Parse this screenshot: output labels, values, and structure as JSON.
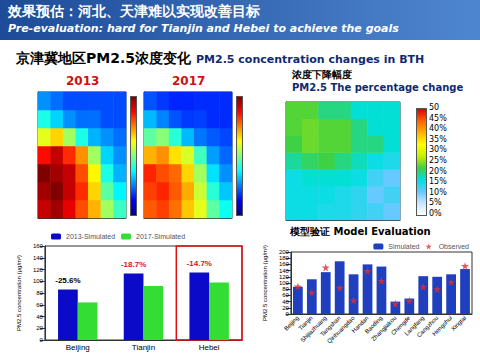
{
  "header": {
    "title": "效果预估：河北、天津难以实现改善目标",
    "subtitle": "Pre-evaluation: hard for Tianjin and Hebei to achieve the goals"
  },
  "section": {
    "title": "京津冀地区PM2.5浓度变化",
    "subtitle": "PM2.5 concentration changes in BTH"
  },
  "chart_data": [
    {
      "type": "heatmap",
      "title": "2013",
      "x": [
        113.5,
        114.5,
        115.5,
        116.5,
        117.5,
        118.5,
        119.5
      ],
      "y": [
        36.5,
        37.5,
        38.5,
        39.5,
        40.5,
        41.5,
        42.5
      ],
      "cells": [
        [
          140,
          145,
          135,
          120,
          105,
          80,
          65
        ],
        [
          145,
          150,
          140,
          125,
          100,
          70,
          55
        ],
        [
          150,
          145,
          140,
          120,
          95,
          60,
          45
        ],
        [
          130,
          140,
          125,
          110,
          80,
          50,
          40
        ],
        [
          90,
          100,
          80,
          60,
          45,
          40,
          35
        ],
        [
          60,
          50,
          40,
          35,
          35,
          30,
          30
        ],
        [
          40,
          35,
          30,
          30,
          30,
          30,
          30
        ]
      ],
      "color_range": [
        0,
        150
      ],
      "tick_labels": false
    },
    {
      "type": "heatmap",
      "title": "2017",
      "x": [
        113.5,
        114.5,
        115.5,
        116.5,
        117.5,
        118.5,
        119.5
      ],
      "y": [
        36.5,
        37.5,
        38.5,
        39.5,
        40.5,
        41.5,
        42.5
      ],
      "cells": [
        [
          118,
          122,
          115,
          102,
          90,
          70,
          58
        ],
        [
          122,
          126,
          118,
          106,
          86,
          62,
          48
        ],
        [
          126,
          120,
          116,
          100,
          80,
          52,
          40
        ],
        [
          105,
          110,
          98,
          88,
          66,
          42,
          34
        ],
        [
          70,
          76,
          62,
          46,
          36,
          32,
          29
        ],
        [
          46,
          38,
          31,
          27,
          28,
          25,
          25
        ],
        [
          31,
          27,
          24,
          24,
          25,
          25,
          25
        ]
      ],
      "color_range": [
        0,
        150
      ],
      "tick_labels": false
    },
    {
      "type": "heatmap",
      "title": "浓度下降幅度",
      "subtitle": "PM2.5 The percentage change",
      "x": [
        113.5,
        114.5,
        115.5,
        116.5,
        117.5,
        118.5,
        119.5
      ],
      "y": [
        36.5,
        37.5,
        38.5,
        39.5,
        40.5,
        41.5,
        42.5
      ],
      "cells": [
        [
          16,
          16,
          15,
          15,
          14,
          13,
          11
        ],
        [
          16,
          16,
          16,
          15,
          14,
          11,
          13
        ],
        [
          16,
          17,
          17,
          17,
          16,
          13,
          11
        ],
        [
          19,
          21,
          22,
          20,
          18,
          16,
          15
        ],
        [
          22,
          24,
          23,
          23,
          20,
          20,
          17
        ],
        [
          23,
          24,
          23,
          23,
          20,
          17,
          17
        ],
        [
          23,
          23,
          20,
          20,
          17,
          17,
          17
        ]
      ],
      "color_range": [
        0,
        50
      ],
      "color_ticks": [
        {
          "value": 0,
          "label": "0%"
        },
        {
          "value": 5,
          "label": "5%"
        },
        {
          "value": 10,
          "label": "10%"
        },
        {
          "value": 15,
          "label": "15%"
        },
        {
          "value": 20,
          "label": "20%"
        },
        {
          "value": 25,
          "label": "25%"
        },
        {
          "value": 30,
          "label": "30%"
        },
        {
          "value": 35,
          "label": "35%"
        },
        {
          "value": 40,
          "label": "40%"
        },
        {
          "value": 45,
          "label": "45%"
        },
        50
      ],
      "tick_labels": false
    },
    {
      "type": "bar",
      "categories": [
        "Beijing",
        "Tianjin",
        "Hebei"
      ],
      "series": [
        {
          "name": "2013-Simulated",
          "color": "#0a0ac8",
          "values": [
            86,
            113,
            115
          ]
        },
        {
          "name": "2017-Simulated",
          "color": "#33dd33",
          "values": [
            64,
            92,
            98
          ]
        }
      ],
      "y_label": "PM2.5 concentration (μg/m³)",
      "ylim": [
        0,
        160
      ],
      "yticks": [
        0,
        20,
        40,
        60,
        80,
        100,
        120,
        140,
        160
      ],
      "annotations": [
        {
          "category": "Beijing",
          "text": "-25.6%",
          "color": "#000000"
        },
        {
          "category": "Tianjin",
          "text": "-18.7%",
          "color": "#e01010"
        },
        {
          "category": "Hebei",
          "text": "-14.7%",
          "color": "#e01010"
        }
      ],
      "highlight": "Hebei",
      "legend": "top-left"
    },
    {
      "type": "bar",
      "title": "模型验证 Model Evaluation",
      "categories": [
        "Beijing",
        "Tianjin",
        "Shijiazhuang",
        "Tangshan",
        "Qinhuangdao",
        "Handan",
        "Baoding",
        "Zhangjiakou",
        "Chengde",
        "Langfang",
        "Cangzhou",
        "Hengshui",
        "Xingtai"
      ],
      "series": [
        {
          "name": "Simulated",
          "color": "#1f3fbf",
          "values": [
            88,
            112,
            135,
            170,
            128,
            160,
            153,
            40,
            50,
            122,
            120,
            128,
            145
          ]
        },
        {
          "name": "Observed",
          "type": "scatter",
          "marker": "star",
          "color": "#e03030",
          "values": [
            89,
            70,
            150,
            85,
            44,
            139,
            107,
            33,
            43,
            88,
            80,
            103,
            155
          ]
        }
      ],
      "y_label": "PM2.5 concentration (μg/m³)",
      "ylim": [
        0,
        200
      ],
      "yticks": [
        0,
        20,
        40,
        60,
        80,
        100,
        120,
        140,
        160,
        180,
        200
      ],
      "legend": "top-right"
    }
  ]
}
